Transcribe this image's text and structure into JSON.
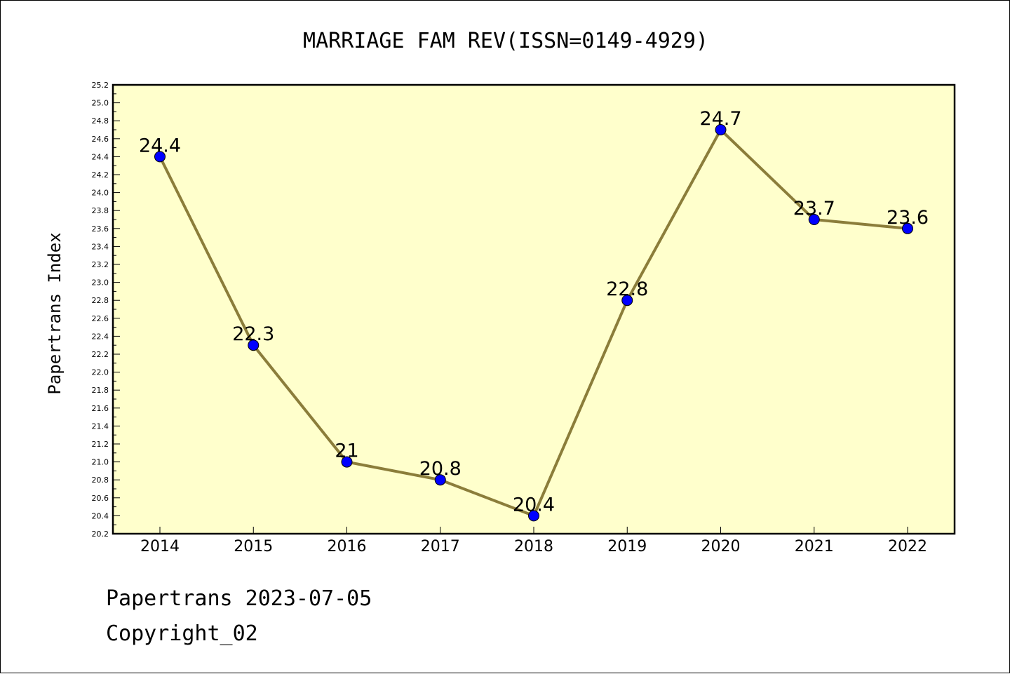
{
  "chart_data": {
    "type": "line",
    "title": "MARRIAGE FAM REV(ISSN=0149-4929)",
    "xlabel": "",
    "ylabel": "Papertrans Index",
    "categories": [
      "2014",
      "2015",
      "2016",
      "2017",
      "2018",
      "2019",
      "2020",
      "2021",
      "2022"
    ],
    "values": [
      24.4,
      22.3,
      21,
      20.8,
      20.4,
      22.8,
      24.7,
      23.7,
      23.6
    ],
    "data_labels": [
      "24.4",
      "22.3",
      "21",
      "20.8",
      "20.4",
      "22.8",
      "24.7",
      "23.7",
      "23.6"
    ],
    "ylim": [
      20.2,
      25.2
    ],
    "yticks": [
      "20.2",
      "20.4",
      "20.6",
      "20.8",
      "21.0",
      "21.2",
      "21.4",
      "21.6",
      "21.8",
      "22.0",
      "22.2",
      "22.4",
      "22.6",
      "22.8",
      "23.0",
      "23.2",
      "23.4",
      "23.6",
      "23.8",
      "24.0",
      "24.2",
      "24.4",
      "24.6",
      "24.8",
      "25.0",
      "25.2"
    ],
    "grid": false,
    "colors": {
      "plot_background": "#ffffcc",
      "line": "#8b7d3a",
      "marker": "#0000ff"
    }
  },
  "footer": {
    "line1": "Papertrans 2023-07-05",
    "line2": "Copyright_02"
  }
}
